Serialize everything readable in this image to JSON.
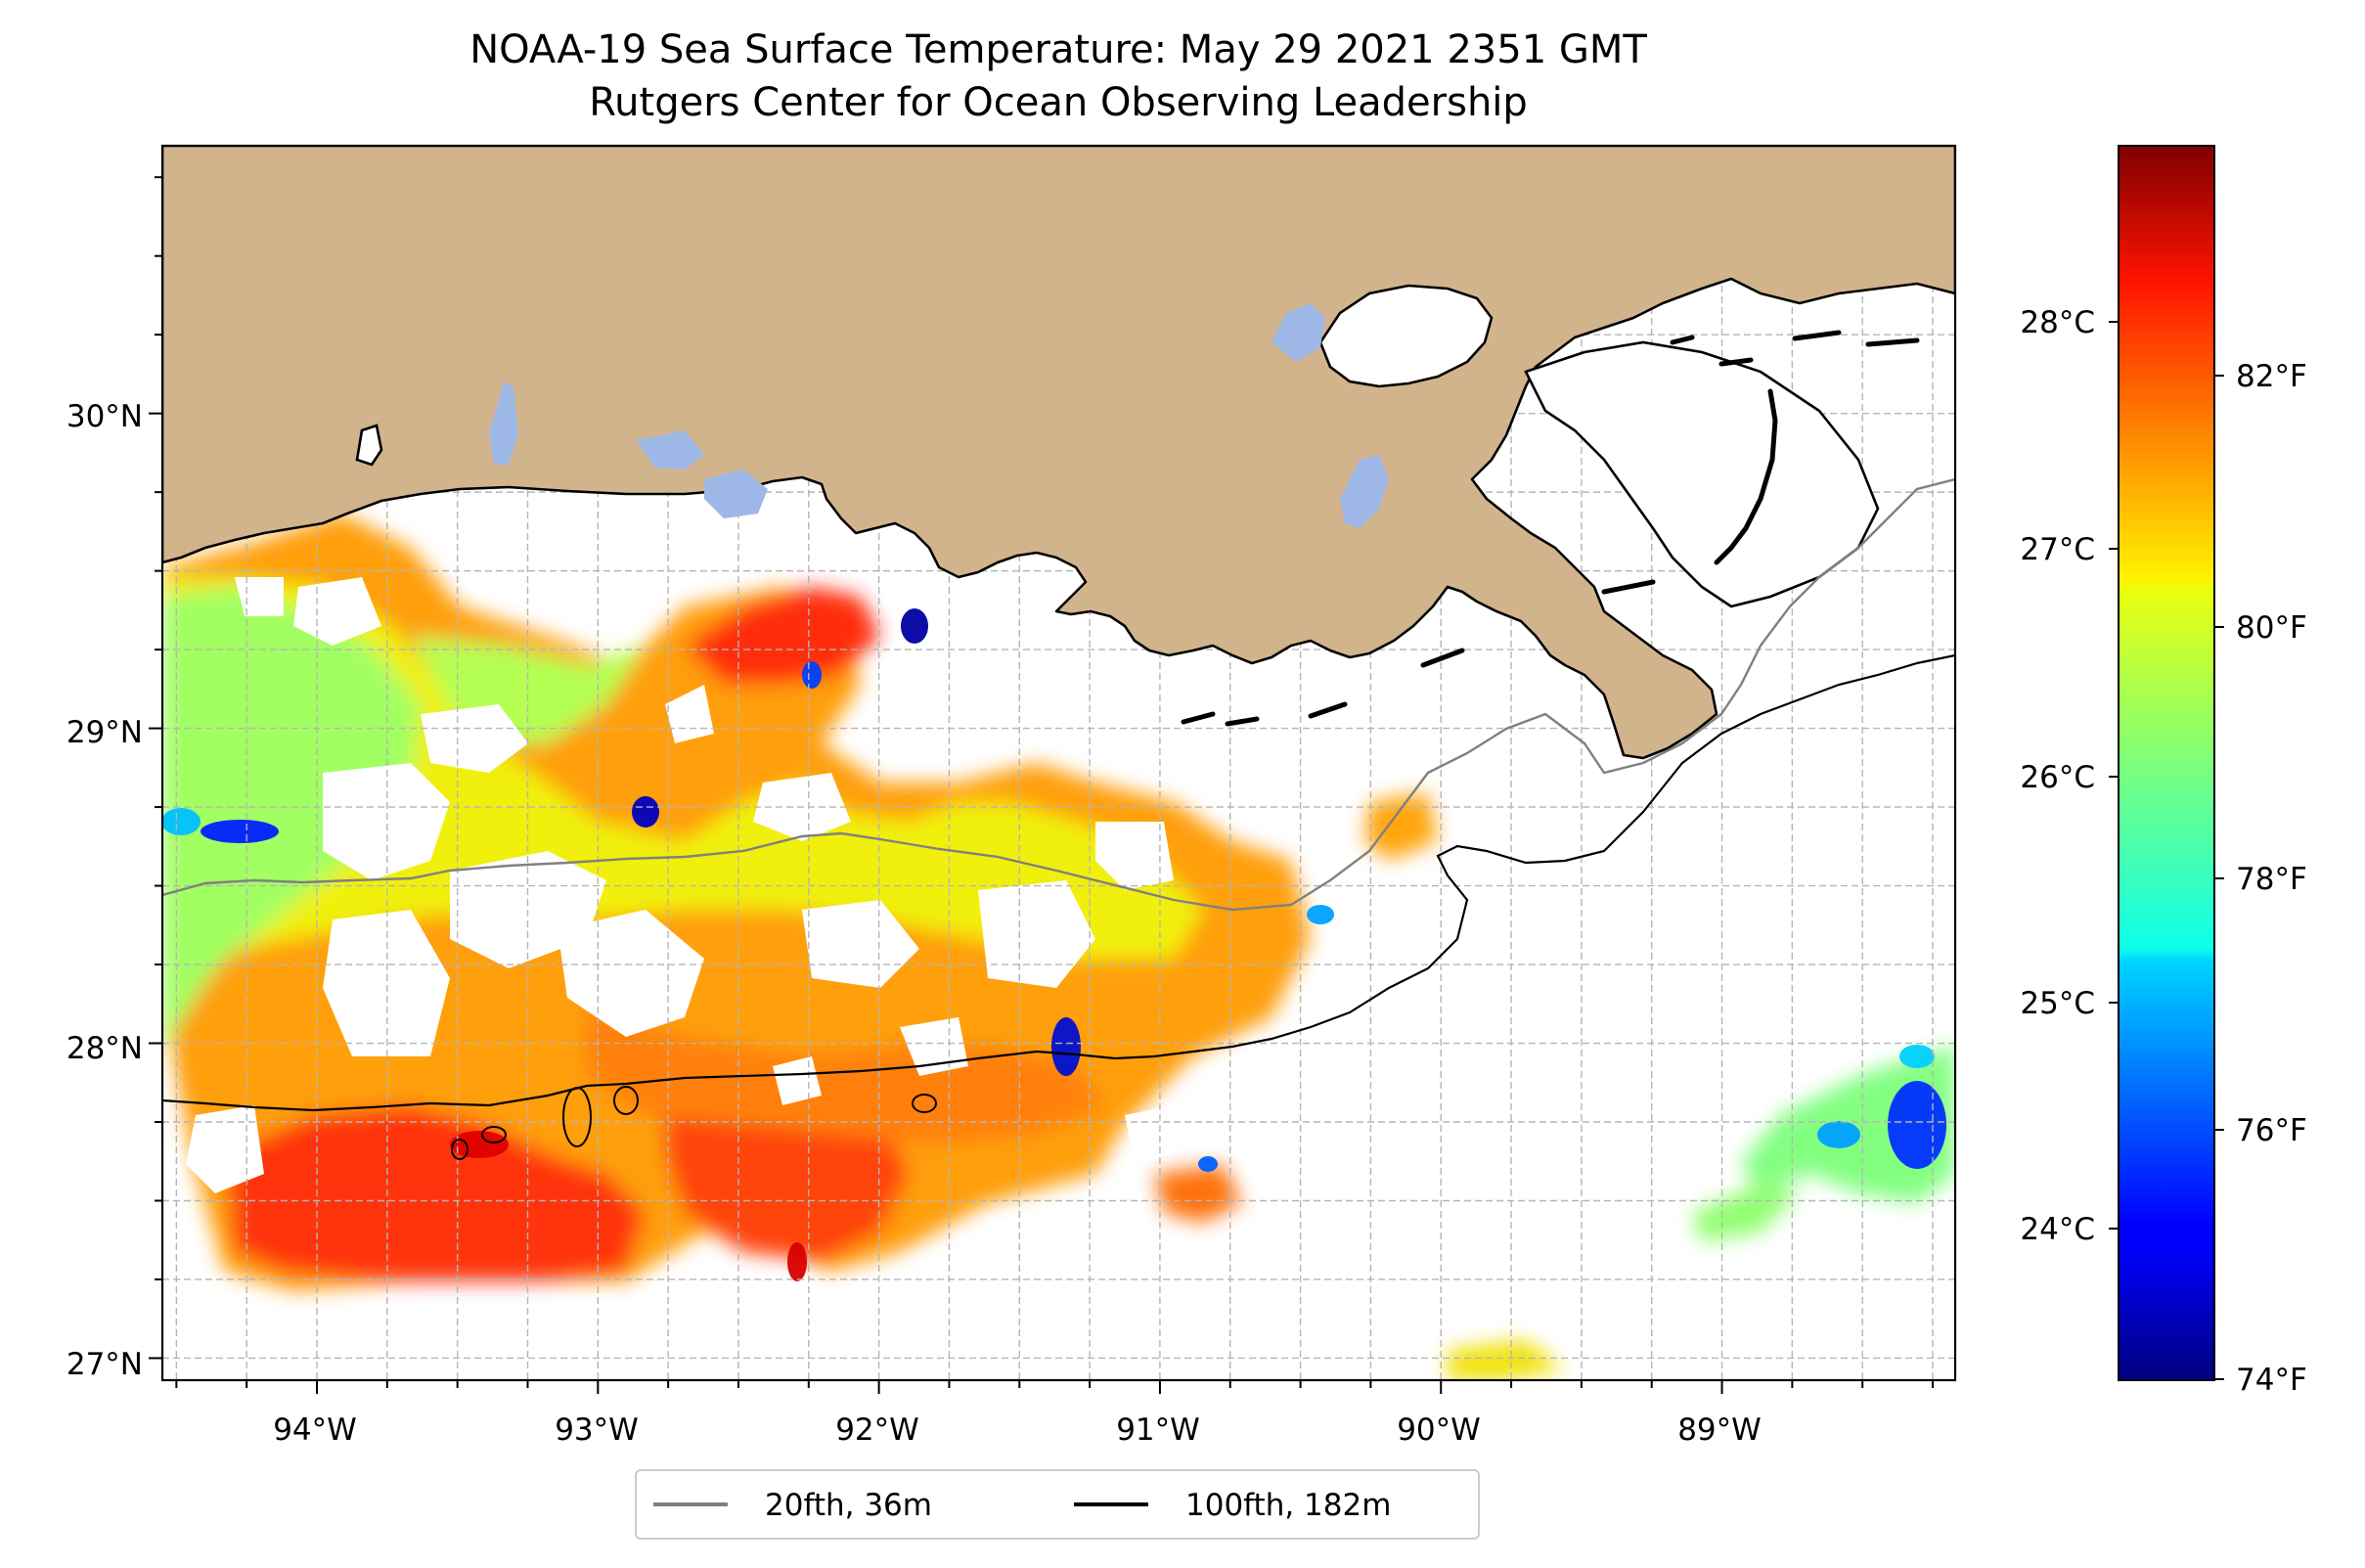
{
  "title": {
    "line1": "NOAA-19 Sea Surface Temperature: May 29 2021 2351 GMT",
    "line2": "Rutgers Center for Ocean Observing Leadership"
  },
  "map": {
    "lon_range": [
      -94.55,
      -88.17
    ],
    "lat_range": [
      26.93,
      30.85
    ],
    "lon_ticks": [
      "94°W",
      "93°W",
      "92°W",
      "91°W",
      "90°W",
      "89°W"
    ],
    "lat_ticks": [
      "27°N",
      "28°N",
      "29°N",
      "30°N"
    ],
    "gridlines": true,
    "colors": {
      "land": "#d2b48c",
      "lakes": "#9db8e6",
      "coastline": "#000000",
      "gridline": "#b0b0b0"
    }
  },
  "colorbar": {
    "colormap": "jet",
    "celsius_ticks": [
      "28°C",
      "27°C",
      "26°C",
      "25°C",
      "24°C"
    ],
    "fahrenheit_ticks": [
      "82°F",
      "80°F",
      "78°F",
      "76°F",
      "74°F"
    ]
  },
  "legend": {
    "items": [
      {
        "label": "20fth, 36m",
        "color": "#808080"
      },
      {
        "label": "100fth, 182m",
        "color": "#000000"
      }
    ],
    "placement": "bottom-center"
  }
}
